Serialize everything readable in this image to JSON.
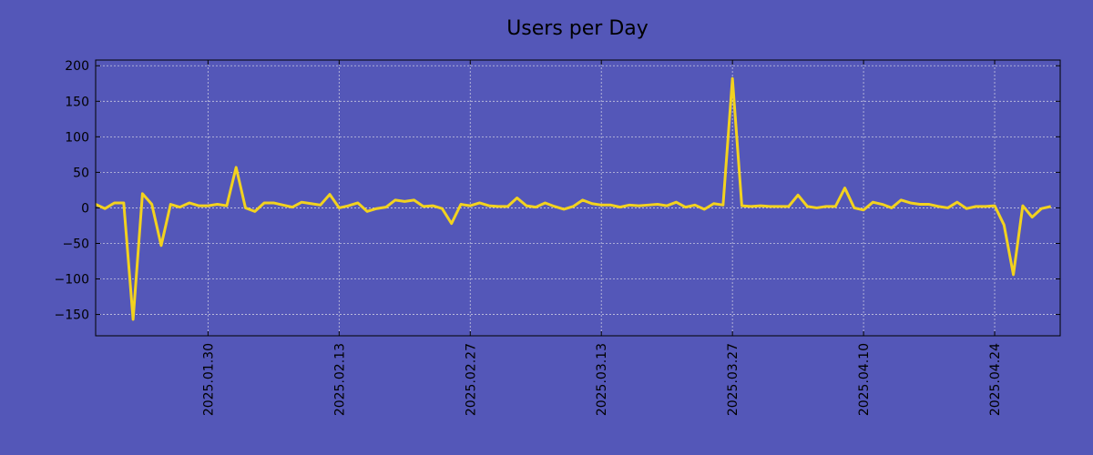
{
  "chart_data": {
    "type": "line",
    "title": "Users per Day",
    "xlabel": "",
    "ylabel": "",
    "x_start": "2025-01-18",
    "x_end": "2025-05-01",
    "xlim": [
      "2025-01-18",
      "2025-05-01"
    ],
    "ylim": [
      -180,
      208
    ],
    "y_ticks": [
      -150,
      -100,
      -50,
      0,
      50,
      100,
      150,
      200
    ],
    "x_ticks": [
      "2025.01.30",
      "2025.02.13",
      "2025.02.27",
      "2025.03.13",
      "2025.03.27",
      "2025.04.10",
      "2025.04.24"
    ],
    "grid": true,
    "colors": {
      "background": "#5457b8",
      "line": "#f2d21f",
      "grid": "#c8c8e0",
      "axis": "#000000"
    },
    "series": [
      {
        "values": [
          5,
          -1,
          7,
          7,
          -157,
          20,
          5,
          -53,
          5,
          1,
          7,
          3,
          3,
          5,
          3,
          57,
          0,
          -5,
          7,
          7,
          4,
          1,
          8,
          6,
          4,
          19,
          0,
          3,
          7,
          -5,
          -1,
          1,
          11,
          9,
          11,
          2,
          3,
          -1,
          -22,
          5,
          3,
          7,
          3,
          2,
          2,
          14,
          3,
          1,
          7,
          2,
          -2,
          2,
          11,
          6,
          4,
          4,
          1,
          4,
          3,
          4,
          5,
          3,
          8,
          1,
          4,
          -2,
          6,
          4,
          182,
          3,
          2,
          3,
          2,
          2,
          2,
          18,
          2,
          0,
          2,
          2,
          28,
          0,
          -3,
          8,
          5,
          0,
          11,
          7,
          5,
          5,
          2,
          0,
          8,
          -1,
          2,
          2,
          3,
          -24,
          -94,
          3,
          -13,
          -1,
          2
        ]
      }
    ]
  }
}
